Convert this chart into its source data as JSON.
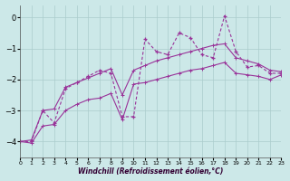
{
  "xlabel": "Windchill (Refroidissement éolien,°C)",
  "bg_color": "#cce8e8",
  "grid_color": "#aacccc",
  "line_color": "#993399",
  "x_data": [
    0,
    1,
    2,
    3,
    4,
    5,
    6,
    7,
    8,
    9,
    10,
    11,
    12,
    13,
    14,
    15,
    16,
    17,
    18,
    19,
    20,
    21,
    22,
    23
  ],
  "y_main": [
    -4.0,
    -4.0,
    -3.0,
    -3.4,
    -2.3,
    -2.1,
    -1.9,
    -1.7,
    -1.8,
    -3.2,
    -3.2,
    -0.7,
    -1.1,
    -1.2,
    -0.5,
    -0.65,
    -1.2,
    -1.3,
    0.05,
    -1.1,
    -1.6,
    -1.55,
    -1.8,
    -1.8
  ],
  "y_min": [
    -4.0,
    -4.05,
    -3.5,
    -3.45,
    -3.0,
    -2.8,
    -2.65,
    -2.6,
    -2.45,
    -3.3,
    -2.15,
    -2.1,
    -2.0,
    -1.9,
    -1.8,
    -1.7,
    -1.65,
    -1.55,
    -1.45,
    -1.8,
    -1.85,
    -1.9,
    -2.0,
    -1.85
  ],
  "y_max": [
    -4.0,
    -3.95,
    -3.0,
    -2.95,
    -2.25,
    -2.1,
    -1.95,
    -1.8,
    -1.65,
    -2.5,
    -1.7,
    -1.55,
    -1.4,
    -1.3,
    -1.2,
    -1.1,
    -1.0,
    -0.9,
    -0.85,
    -1.3,
    -1.4,
    -1.5,
    -1.7,
    -1.75
  ],
  "ylim": [
    -4.5,
    0.4
  ],
  "xlim": [
    0,
    23
  ],
  "yticks": [
    0,
    -1,
    -2,
    -3,
    -4
  ],
  "xticks": [
    0,
    1,
    2,
    3,
    4,
    5,
    6,
    7,
    8,
    9,
    10,
    11,
    12,
    13,
    14,
    15,
    16,
    17,
    18,
    19,
    20,
    21,
    22,
    23
  ]
}
